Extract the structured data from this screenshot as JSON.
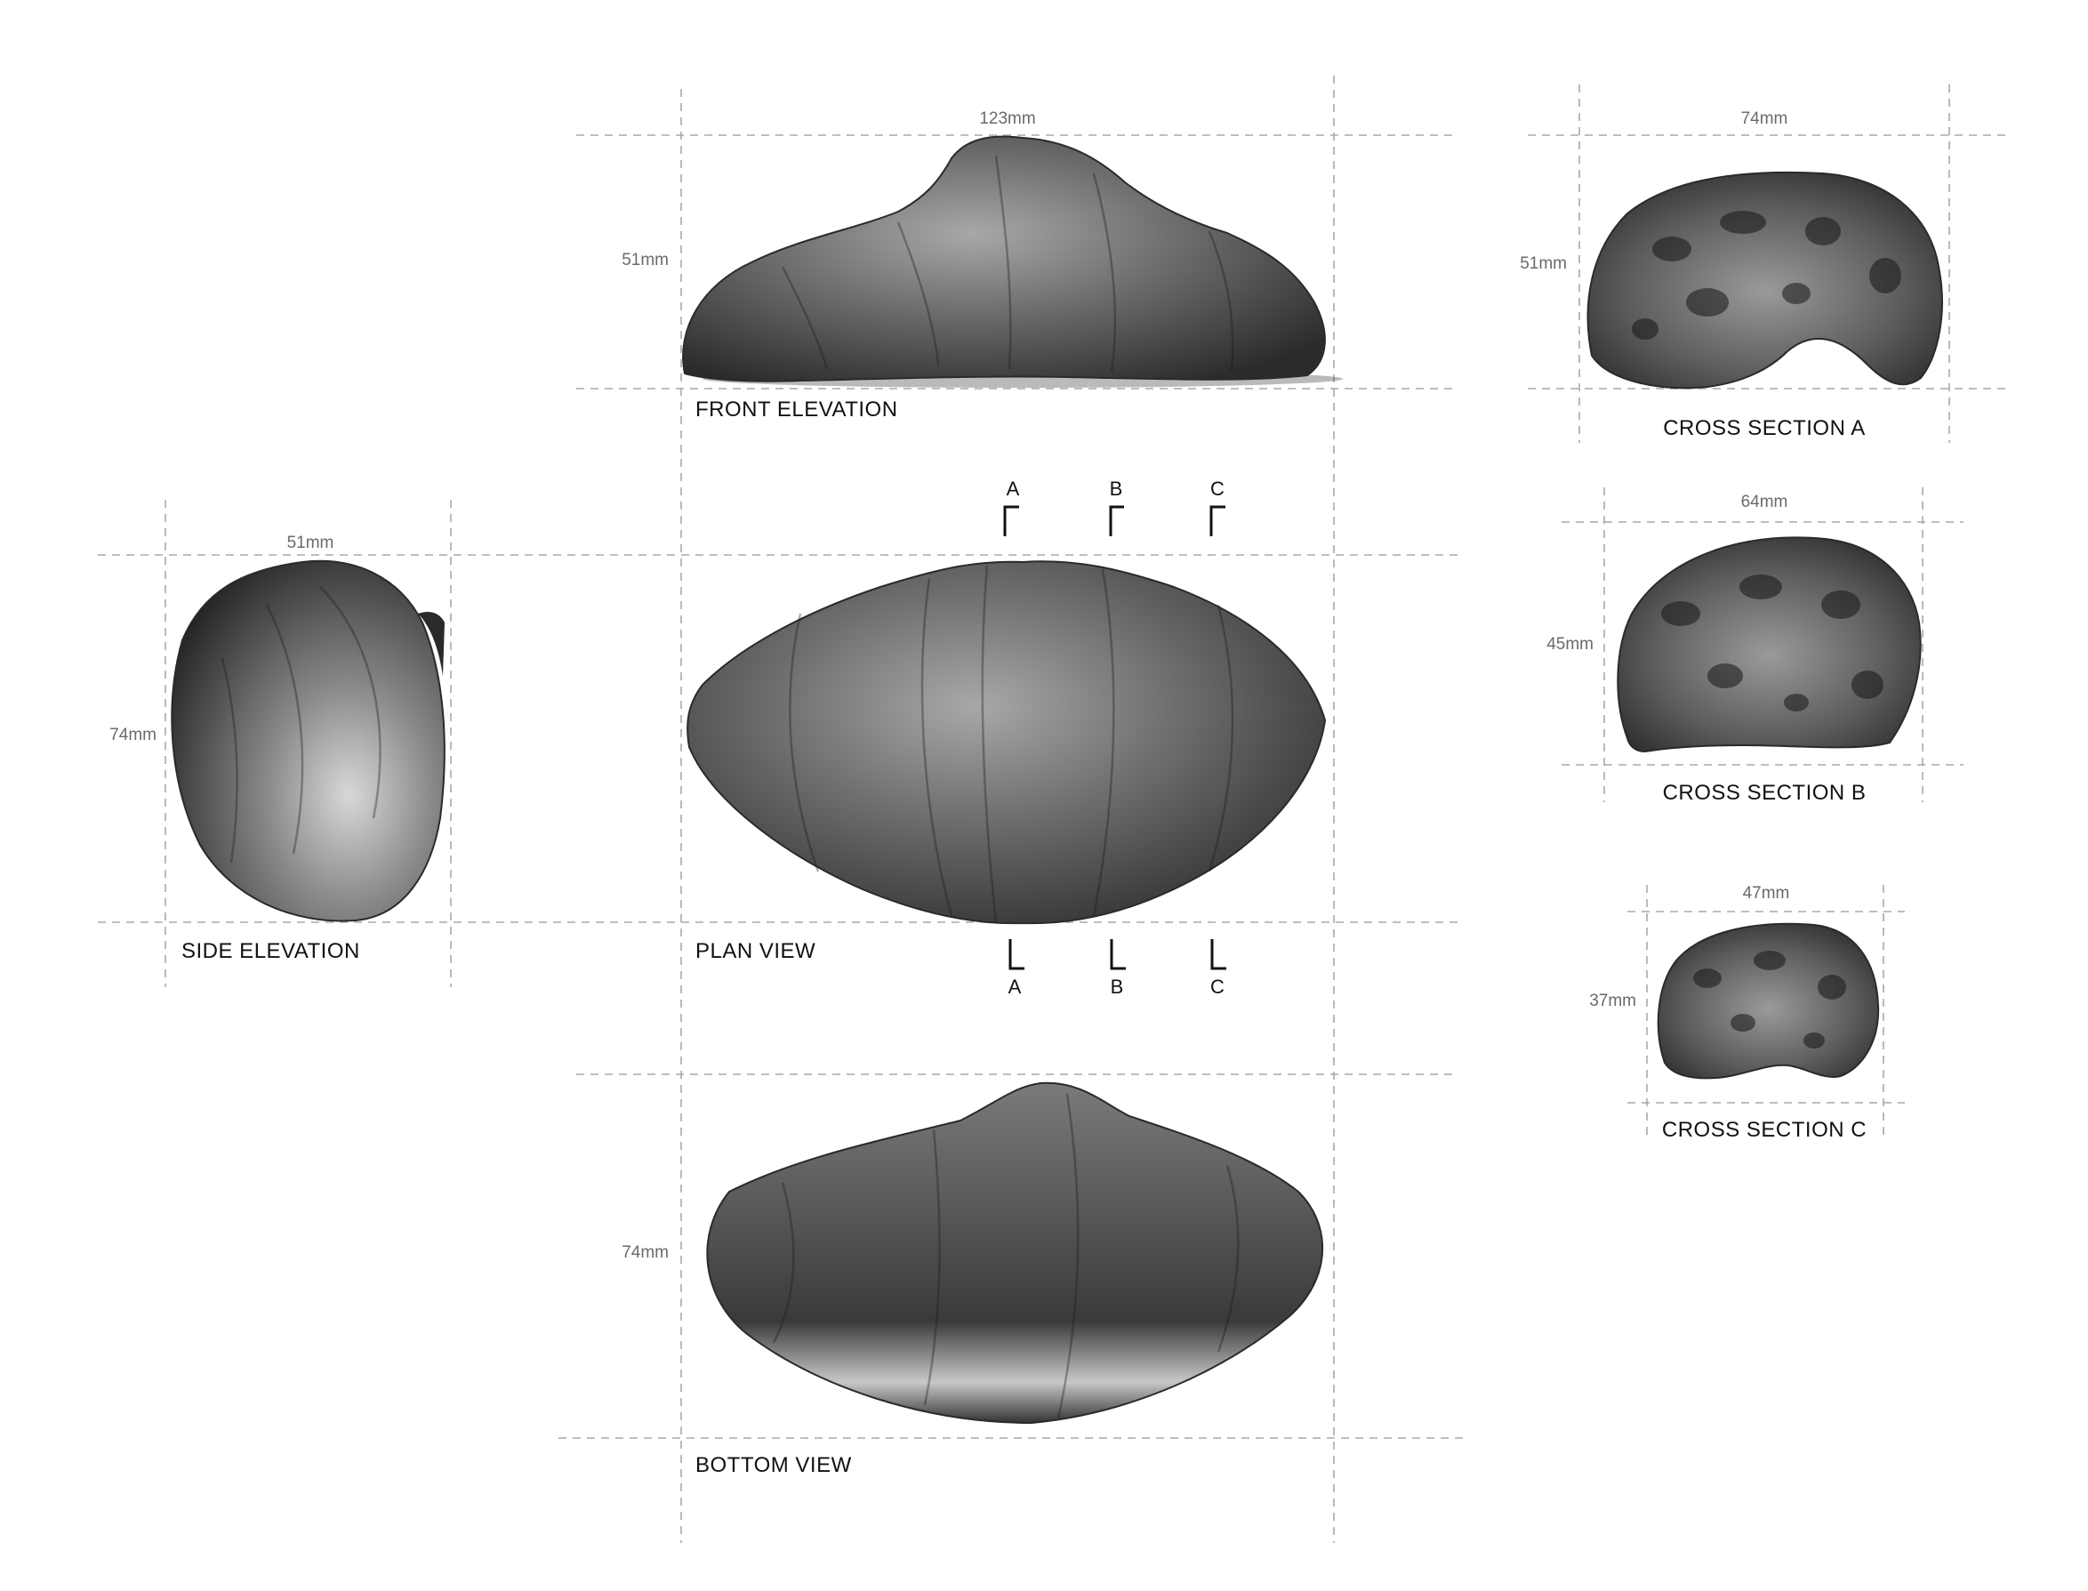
{
  "views": {
    "front_elevation": {
      "label": "FRONT ELEVATION",
      "width": "123mm",
      "height": "51mm"
    },
    "side_elevation": {
      "label": "SIDE ELEVATION",
      "width": "51mm",
      "height": "74mm"
    },
    "plan_view": {
      "label": "PLAN VIEW"
    },
    "bottom_view": {
      "label": "BOTTOM VIEW",
      "height": "74mm"
    },
    "cross_section_a": {
      "label": "CROSS SECTION A",
      "width": "74mm",
      "height": "51mm"
    },
    "cross_section_b": {
      "label": "CROSS SECTION B",
      "width": "64mm",
      "height": "45mm"
    },
    "cross_section_c": {
      "label": "CROSS SECTION C",
      "width": "47mm",
      "height": "37mm"
    }
  },
  "section_markers": {
    "top": [
      "A",
      "B",
      "C"
    ],
    "bottom": [
      "A",
      "B",
      "C"
    ]
  },
  "colors": {
    "guide_line": "#a8a8a8",
    "dimension_text": "#6a6a6a",
    "label_text": "#111111",
    "crust_dark": "#2b2b2b",
    "crust_mid": "#6e6e6e",
    "crust_light": "#b9b9b9"
  }
}
